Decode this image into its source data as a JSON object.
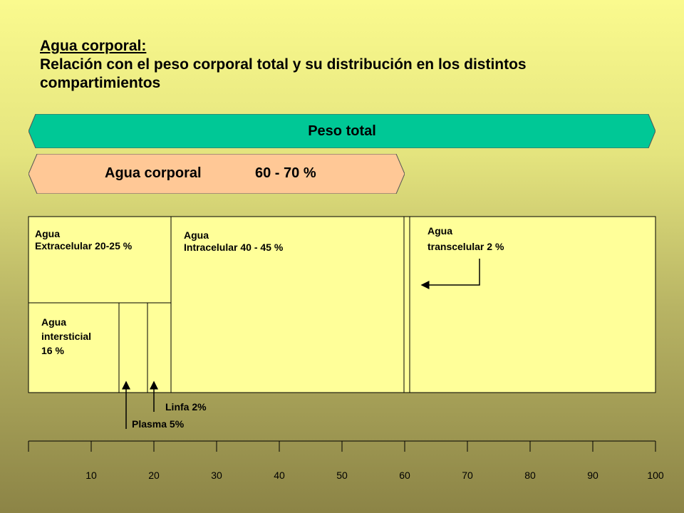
{
  "title": {
    "line1": "Agua corporal:",
    "line2": "Relación con el peso corporal total y su distribución en los distintos compartimientos"
  },
  "bands": {
    "peso_total": {
      "label": "Peso total",
      "color": "#00c896"
    },
    "agua_corporal": {
      "label": "Agua corporal",
      "value": "60 - 70 %",
      "color": "#ffc896"
    }
  },
  "compartments": {
    "extracelular": "Agua\nExtracelular 20-25 %",
    "intracelular": "Agua\nIntracelular 40 - 45 %",
    "transcelular": "Agua\ntranscelular 2 %",
    "intersticial": "Agua\nintersticial\n16 %",
    "linfa": "Linfa 2%",
    "plasma": "Plasma 5%"
  },
  "scale": {
    "min": 0,
    "max": 100,
    "ticks": [
      0,
      10,
      20,
      30,
      40,
      50,
      60,
      70,
      80,
      90,
      100
    ],
    "labels": [
      "10",
      "20",
      "30",
      "40",
      "50",
      "60",
      "70",
      "80",
      "90",
      "100"
    ]
  },
  "colors": {
    "box_fill": "#ffff99",
    "stroke": "#000000"
  }
}
